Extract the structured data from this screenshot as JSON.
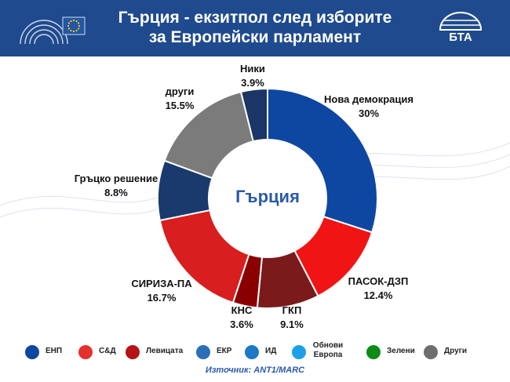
{
  "header": {
    "title_line1": "Гърция - екзитпол след изборите",
    "title_line2": "за Европейски парламент",
    "bta_logo_text": "БТА"
  },
  "colors": {
    "header_bg": "#1f4a8e",
    "eu_blue": "#2456a6",
    "eu_star": "#ffd200"
  },
  "chart_data": {
    "type": "pie",
    "donut": true,
    "center_label": "Гърция",
    "slices": [
      {
        "name": "Нова демокрация",
        "value": 30,
        "label": "30%",
        "color": "#0e47a1"
      },
      {
        "name": "ПАСОК-ДЗП",
        "value": 12.4,
        "label": "12.4%",
        "color": "#f01414"
      },
      {
        "name": "ГКП",
        "value": 9.1,
        "label": "9.1%",
        "color": "#7a1a1a"
      },
      {
        "name": "КНС",
        "value": 3.6,
        "label": "3.6%",
        "color": "#8a0000"
      },
      {
        "name": "СИРИЗА-ПА",
        "value": 16.7,
        "label": "16.7%",
        "color": "#d81e1e"
      },
      {
        "name": "Гръцко решение",
        "value": 8.8,
        "label": "8.8%",
        "color": "#1a3a6e"
      },
      {
        "name": "други",
        "value": 15.5,
        "label": "15.5%",
        "color": "#7b7b7b"
      },
      {
        "name": "Ники",
        "value": 3.9,
        "label": "3.9%",
        "color": "#1b3566"
      }
    ]
  },
  "legend": [
    {
      "label": "ЕНП",
      "color": "#0e47a1"
    },
    {
      "label": "С&Д",
      "color": "#e53030"
    },
    {
      "label": "Левицата",
      "color": "#b51414"
    },
    {
      "label": "ЕКР",
      "color": "#2a6fb8"
    },
    {
      "label": "ИД",
      "color": "#1e78c8"
    },
    {
      "label": "Обнови Европа",
      "color": "#1ea0e8"
    },
    {
      "label": "Зелени",
      "color": "#0e8a16"
    },
    {
      "label": "Други",
      "color": "#6e6e6e"
    }
  ],
  "source": "Източник: ANT1/MARC"
}
